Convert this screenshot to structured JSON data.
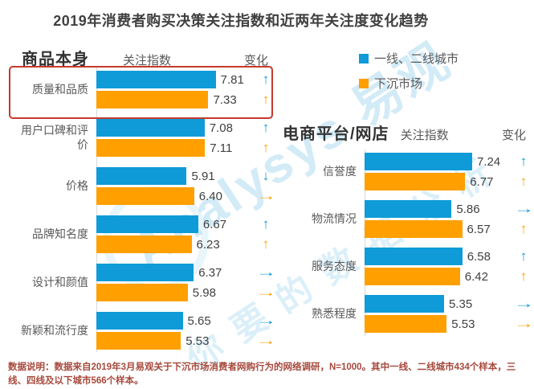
{
  "title": "2019年消费者购买决策关注指数和近两年关注度变化趋势",
  "legend": {
    "items": [
      {
        "label": "一线、二线城市",
        "color": "#0F9BD7"
      },
      {
        "label": "下沉市场",
        "color": "#FF9F00"
      }
    ]
  },
  "colors": {
    "series1_blue": "#0F9BD7",
    "series2_orange": "#FF9F00",
    "highlight_red": "#C53A2C",
    "note_text": "#A6493C",
    "axis_gray": "#D9D9D9"
  },
  "chart_data": [
    {
      "type": "bar",
      "title": "商品本身",
      "index_label": "关注指数",
      "change_label": "变化",
      "orientation": "horizontal",
      "highlighted_category": "质量和品质",
      "categories": [
        "质量和品质",
        "用户口碑和评价",
        "价格",
        "品牌知名度",
        "设计和颜值",
        "新颖和流行度"
      ],
      "series": [
        {
          "name": "一线、二线城市",
          "values": [
            7.81,
            7.08,
            5.91,
            6.67,
            6.37,
            5.65
          ],
          "labels": [
            "7.81",
            "7.08",
            "5.91",
            "6.67",
            "6.37",
            "5.65"
          ],
          "trends": [
            "up",
            "up",
            "down",
            "up",
            "right",
            "right"
          ]
        },
        {
          "name": "下沉市场",
          "values": [
            7.33,
            7.11,
            6.4,
            6.23,
            5.98,
            5.53
          ],
          "labels": [
            "7.33",
            "7.11",
            "6.40",
            "6.23",
            "5.98",
            "5.53"
          ],
          "trends": [
            "up",
            "up",
            "right",
            "up",
            "right",
            "right"
          ]
        }
      ]
    },
    {
      "type": "bar",
      "title": "电商平台/网店",
      "index_label": "关注指数",
      "change_label": "变化",
      "orientation": "horizontal",
      "categories": [
        "信誉度",
        "物流情况",
        "服务态度",
        "熟悉程度"
      ],
      "series": [
        {
          "name": "一线、二线城市",
          "values": [
            7.24,
            5.86,
            6.58,
            5.35
          ],
          "labels": [
            "7.24",
            "5.86",
            "6.58",
            "5.35"
          ],
          "trends": [
            "up",
            "right",
            "up",
            "right"
          ]
        },
        {
          "name": "下沉市场",
          "values": [
            6.77,
            6.57,
            6.42,
            5.53
          ],
          "labels": [
            "6.77",
            "6.57",
            "6.42",
            "5.53"
          ],
          "trends": [
            "up",
            "up",
            "up",
            "right"
          ]
        }
      ]
    }
  ],
  "watermark": {
    "brand": "Analysys 易观",
    "slogan": "你要的数据分析"
  },
  "footnote": {
    "text": "数据说明：数据来自2019年3月易观关于下沉市场消费者网购行为的网络调研，N=1000。其中一线、二线城市434个样本，三线、四线及以下城市566个样本。"
  }
}
